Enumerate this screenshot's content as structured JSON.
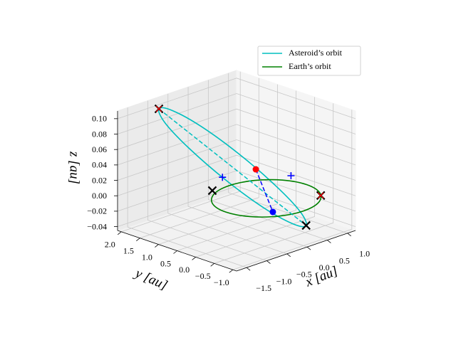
{
  "chart_data": {
    "type": "line3d",
    "xlabel": "x [au]",
    "ylabel": "y [au]",
    "zlabel": "z [au]",
    "xlim": [
      -1.75,
      1.2
    ],
    "ylim": [
      -1.1,
      2.1
    ],
    "zlim": [
      -0.045,
      0.11
    ],
    "xticks": [
      {
        "value": -1.5,
        "label": "−1.5"
      },
      {
        "value": -1.0,
        "label": "−1.0"
      },
      {
        "value": -0.5,
        "label": "−0.5"
      },
      {
        "value": 0,
        "label": "0.0"
      },
      0.5,
      {
        "value": 1.0,
        "label": "1.0"
      }
    ],
    "yticks": [
      {
        "value": -1.0,
        "label": "−1.0"
      },
      {
        "value": -0.5,
        "label": "−0.5"
      },
      {
        "value": 0,
        "label": "0.0"
      },
      0.5,
      {
        "value": 1.0,
        "label": "1.0"
      },
      1.5,
      {
        "value": 2.0,
        "label": "2.0"
      }
    ],
    "zticks": [
      {
        "value": -0.04,
        "label": "−0.04"
      },
      {
        "value": -0.02,
        "label": "−0.02"
      },
      {
        "value": 0,
        "label": "0.00"
      },
      {
        "value": 0.02,
        "label": "0.02"
      },
      {
        "value": 0.04,
        "label": "0.04"
      },
      {
        "value": 0.06,
        "label": "0.06"
      },
      {
        "value": 0.08,
        "label": "0.08"
      },
      {
        "value": 0.1,
        "label": "0.10"
      }
    ],
    "grid": true,
    "legend": "upper right",
    "series": [
      {
        "name": "Asteroid’s orbit",
        "color": "#00bfbf",
        "x": [
          0.63,
          0.794,
          0.694,
          0.355,
          -0.132,
          -0.634,
          -1.02,
          -1.184,
          -1.084,
          -0.745,
          -0.259,
          0.244
        ],
        "y": [
          -0.39,
          -0.04,
          0.508,
          1.105,
          1.593,
          1.84,
          1.78,
          1.43,
          0.883,
          0.285,
          -0.203,
          -0.45
        ],
        "z": [
          -0.04,
          -0.03,
          -0.004,
          0.0325,
          0.069,
          0.095,
          0.105,
          0.095,
          0.069,
          0.0325,
          -0.004,
          -0.03
        ]
      },
      {
        "name": "Earth’s orbit",
        "color": "#008000",
        "x": [
          1,
          0.866,
          0.5,
          0,
          -0.5,
          -0.866,
          -1,
          -0.866,
          -0.5,
          0,
          0.5,
          0.866
        ],
        "y": [
          0,
          0.5,
          0.866,
          1,
          0.866,
          0.5,
          0,
          -0.5,
          -0.866,
          -1,
          -0.866,
          -0.5
        ],
        "z": [
          0,
          0,
          0,
          0,
          0,
          0,
          0,
          0,
          0,
          0,
          0,
          0
        ]
      }
    ],
    "segments": [
      {
        "color": "#00bfbf",
        "dashed": true,
        "x": [
          -1.02,
          0.63
        ],
        "y": [
          1.78,
          -0.39
        ],
        "z": [
          0.105,
          -0.04
        ]
      },
      {
        "color": "#0000ff",
        "dashed": true,
        "x": [
          0.085,
          -0.414
        ],
        "y": [
          0.372,
          -0.627
        ],
        "z": [
          0.03,
          0
        ]
      }
    ],
    "markers": [
      {
        "marker": "x",
        "color": "#000000",
        "x": -1.02,
        "y": 1.78,
        "z": 0.105
      },
      {
        "marker": "x",
        "color": "#000000",
        "x": 0.63,
        "y": -0.39,
        "z": -0.04
      },
      {
        "marker": "x",
        "color": "#000000",
        "x": 0.78,
        "y": -0.62,
        "z": 0
      },
      {
        "marker": "x",
        "color": "#000000",
        "x": -0.387,
        "y": 1.03,
        "z": 0
      },
      {
        "marker": "x",
        "color": "#ff0000",
        "x": -1.02,
        "y": 1.78,
        "z": 0.105
      },
      {
        "marker": "x",
        "color": "#ff0000",
        "x": 0.78,
        "y": -0.62,
        "z": 0
      },
      {
        "marker": "+",
        "color": "#0000ff",
        "x": 1.13,
        "y": 0.56,
        "z": 0
      },
      {
        "marker": "+",
        "color": "#0000ff",
        "x": 0.224,
        "y": 1.42,
        "z": 0
      },
      {
        "marker": "o",
        "color": "#ff0000",
        "x": 0.085,
        "y": 0.372,
        "z": 0.03
      },
      {
        "marker": "o",
        "color": "#0000ff",
        "x": -0.414,
        "y": -0.627,
        "z": 0
      }
    ]
  }
}
